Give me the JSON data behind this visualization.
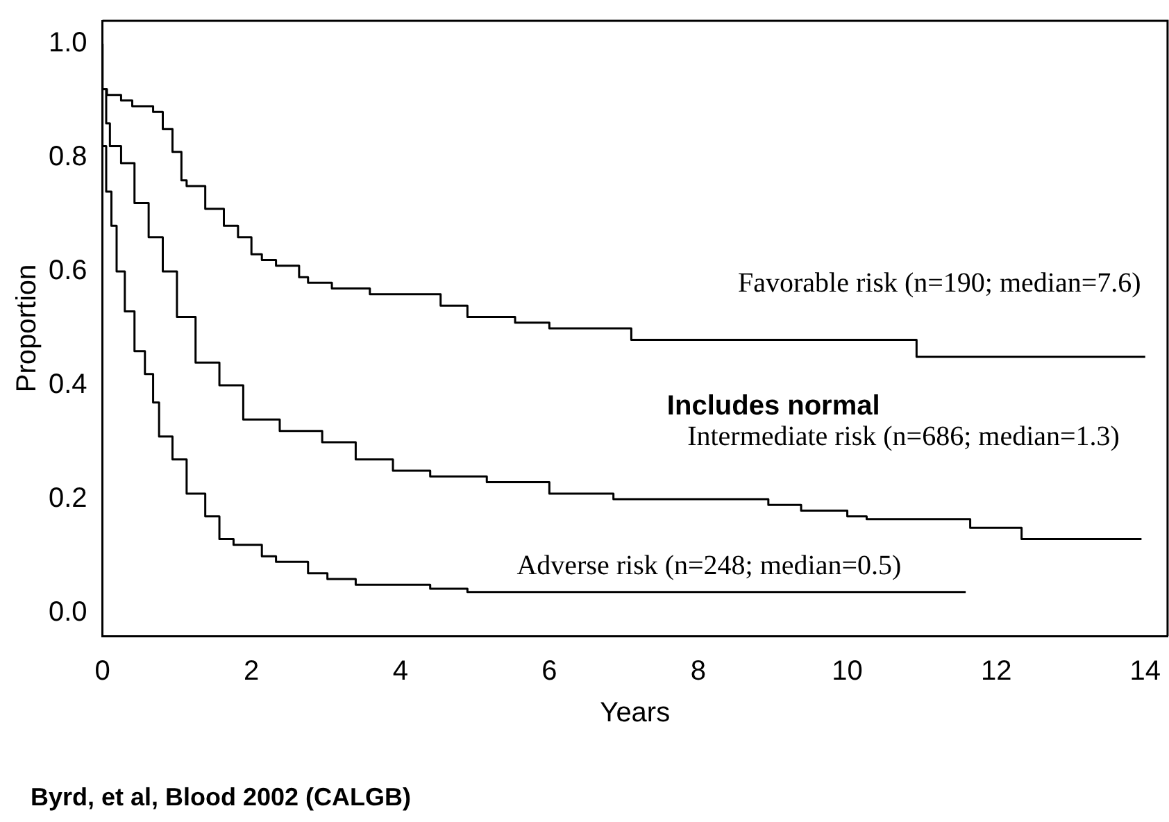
{
  "chart_data": {
    "type": "step",
    "xlabel": "Years",
    "ylabel": "Proportion",
    "xlim": [
      0,
      14.3
    ],
    "ylim": [
      -0.04,
      1.04
    ],
    "xticks": [
      0,
      2,
      4,
      6,
      8,
      10,
      12,
      14
    ],
    "yticks": [
      {
        "value": 0,
        "label": "0.0"
      },
      {
        "value": 0.2,
        "label": "0.2"
      },
      {
        "value": 0.4,
        "label": "0.4"
      },
      {
        "value": 0.6,
        "label": "0.6"
      },
      {
        "value": 0.8,
        "label": "0.8"
      },
      {
        "value": 1,
        "label": "1.0"
      }
    ],
    "grid": false,
    "legend": false,
    "series": [
      {
        "name": "Favorable risk (n=190; median=7.6)",
        "color": "#000000",
        "x": [
          0,
          0.06,
          0.25,
          0.4,
          0.68,
          0.81,
          0.94,
          1.06,
          1.13,
          1.38,
          1.63,
          1.82,
          2.0,
          2.14,
          2.33,
          2.64,
          2.76,
          3.08,
          3.59,
          4.54,
          4.9,
          5.54,
          6.0,
          7.1,
          10.93,
          11.46,
          14.0
        ],
        "values": [
          1.0,
          0.92,
          0.91,
          0.9,
          0.89,
          0.88,
          0.85,
          0.81,
          0.76,
          0.75,
          0.71,
          0.68,
          0.66,
          0.63,
          0.62,
          0.61,
          0.59,
          0.58,
          0.57,
          0.56,
          0.54,
          0.52,
          0.51,
          0.5,
          0.48,
          0.45,
          0.45
        ]
      },
      {
        "name": "Intermediate risk (n=686; median=1.3)",
        "color": "#000000",
        "x": [
          0,
          0.05,
          0.1,
          0.25,
          0.43,
          0.62,
          0.81,
          1.0,
          1.25,
          1.57,
          1.89,
          2.38,
          2.95,
          3.4,
          3.9,
          4.4,
          5.16,
          6.0,
          6.86,
          8.94,
          9.38,
          10.0,
          10.26,
          11.65,
          12.34,
          12.44,
          13.95
        ],
        "values": [
          1.0,
          0.92,
          0.86,
          0.82,
          0.79,
          0.72,
          0.66,
          0.6,
          0.52,
          0.44,
          0.4,
          0.34,
          0.32,
          0.3,
          0.27,
          0.25,
          0.24,
          0.23,
          0.21,
          0.2,
          0.19,
          0.18,
          0.17,
          0.165,
          0.15,
          0.13,
          0.13
        ]
      },
      {
        "name": "Adverse risk (n=248; median=0.5)",
        "color": "#000000",
        "x": [
          0,
          0.05,
          0.12,
          0.19,
          0.3,
          0.43,
          0.57,
          0.68,
          0.76,
          0.94,
          1.13,
          1.38,
          1.57,
          1.76,
          2.14,
          2.33,
          2.76,
          3.02,
          3.4,
          4.4,
          4.9,
          8.75,
          11.59
        ],
        "values": [
          1.0,
          0.82,
          0.74,
          0.68,
          0.6,
          0.53,
          0.46,
          0.42,
          0.37,
          0.31,
          0.27,
          0.21,
          0.17,
          0.13,
          0.12,
          0.1,
          0.09,
          0.07,
          0.06,
          0.05,
          0.043,
          0.037,
          0.037
        ]
      }
    ],
    "annotations": [
      "Includes normal",
      "Byrd, et al, Blood 2002 (CALGB)"
    ]
  }
}
